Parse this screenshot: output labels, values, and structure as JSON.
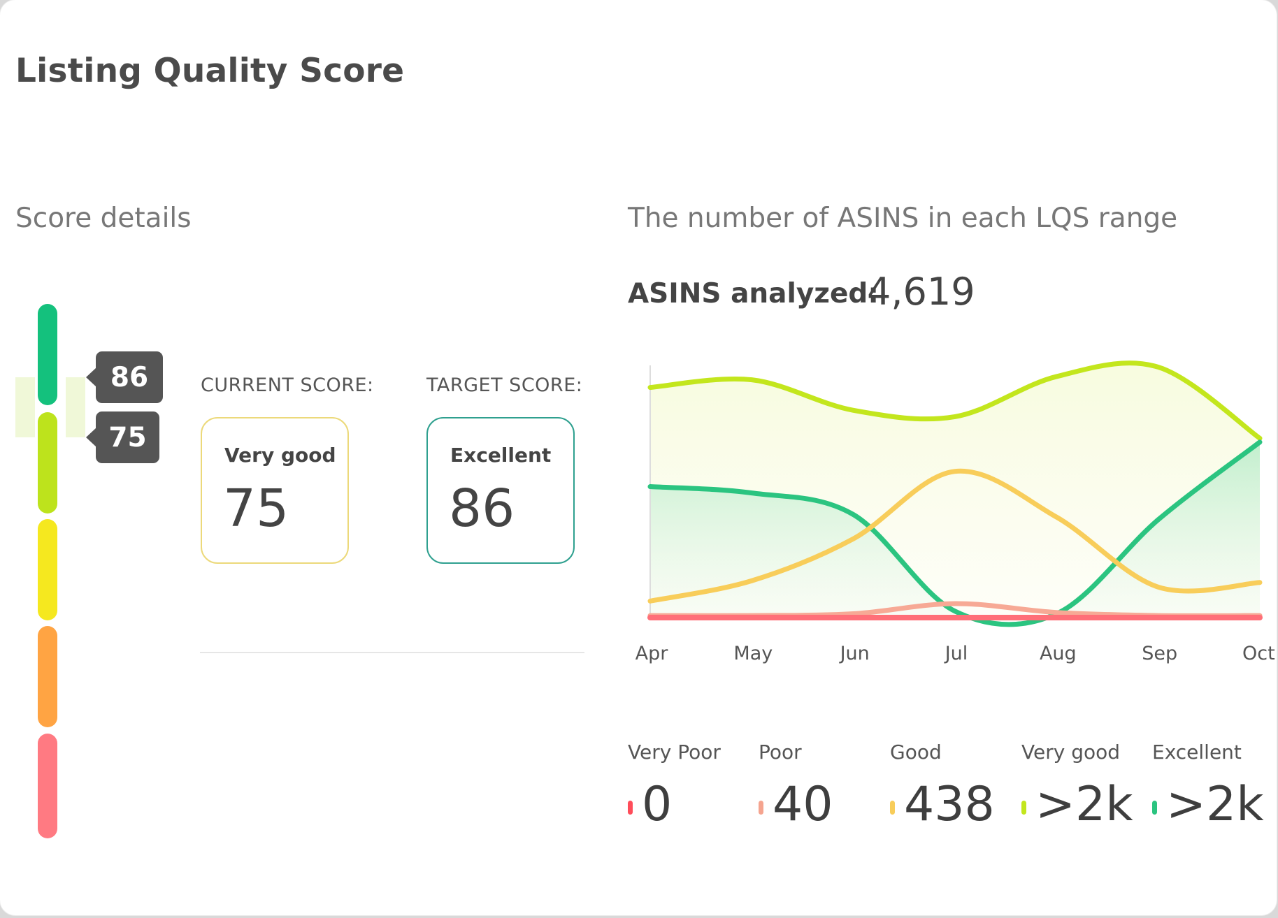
{
  "title": "Listing Quality Score",
  "score_details": {
    "heading": "Score details",
    "scale_colors": [
      "#14c17d",
      "#bde31c",
      "#f5e81f",
      "#ffa443",
      "#ff7a82"
    ],
    "markers": {
      "target": "86",
      "current": "75"
    },
    "current": {
      "label": "CURRENT SCORE:",
      "grade": "Very good",
      "value": "75",
      "border_color": "#ecd97a"
    },
    "target": {
      "label": "TARGET SCORE:",
      "grade": "Excellent",
      "value": "86",
      "border_color": "#2fa08f"
    }
  },
  "distribution": {
    "heading": "The number of ASINS in each LQS range",
    "analyzed_label": "ASINS analyzed:",
    "analyzed_value": "4,619"
  },
  "chart_data": {
    "type": "line",
    "categories": [
      "Apr",
      "May",
      "Jun",
      "Jul",
      "Aug",
      "Sep",
      "Oct"
    ],
    "ylim": [
      0,
      1000
    ],
    "grid": false,
    "legend": "bottom",
    "series": [
      {
        "name": "Very good",
        "color": "#c3e61d",
        "values": [
          905,
          935,
          815,
          790,
          948,
          985,
          705
        ]
      },
      {
        "name": "Excellent",
        "color": "#2bc480",
        "values": [
          515,
          490,
          405,
          25,
          15,
          385,
          690
        ]
      },
      {
        "name": "Good",
        "color": "#f8cd5a",
        "values": [
          65,
          145,
          310,
          575,
          395,
          120,
          138
        ]
      },
      {
        "name": "Poor",
        "color": "#f7a995",
        "values": [
          8,
          8,
          15,
          55,
          20,
          8,
          8
        ]
      },
      {
        "name": "Very Poor",
        "color": "#ff6f78",
        "values": [
          0,
          0,
          0,
          0,
          0,
          0,
          0
        ]
      }
    ]
  },
  "legend": [
    {
      "label": "Very Poor",
      "value": "0",
      "color": "#ff4d5a"
    },
    {
      "label": "Poor",
      "value": "40",
      "color": "#f5a48f"
    },
    {
      "label": "Good",
      "value": "438",
      "color": "#f8cd5a"
    },
    {
      "label": "Very good",
      "value": ">2k",
      "color": "#c3e61d"
    },
    {
      "label": "Excellent",
      "value": ">2k",
      "color": "#2bc480"
    }
  ]
}
